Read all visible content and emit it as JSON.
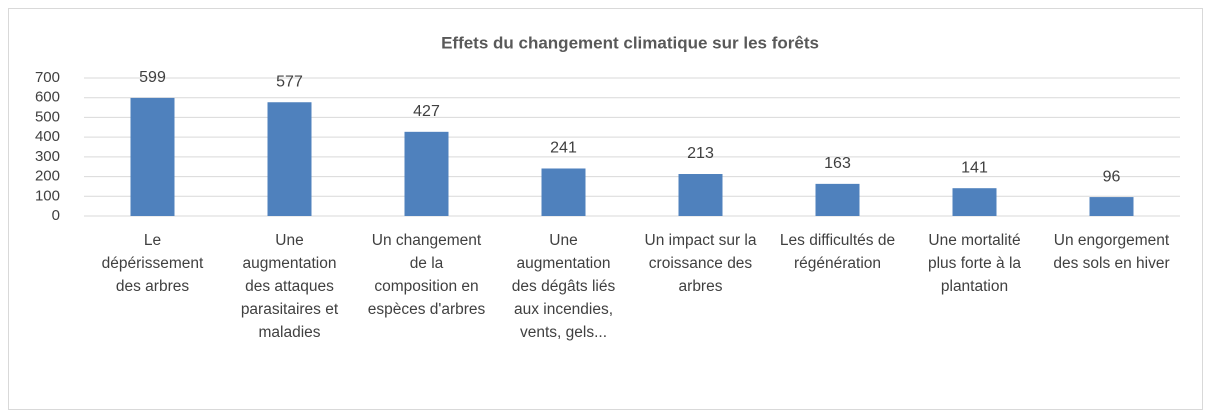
{
  "chart_data": {
    "type": "bar",
    "title": "Effets du changement climatique sur les forêts",
    "categories": [
      "Le dépérissement des arbres",
      "Une augmentation des attaques parasitaires et maladies",
      "Un changement de la composition en espèces d'arbres",
      "Une augmentation des dégâts liés aux incendies, vents, gels...",
      "Un impact sur la croissance des arbres",
      "Les difficultés de régénération",
      "Une mortalité plus forte à la plantation",
      "Un engorgement des sols en hiver"
    ],
    "values": [
      599,
      577,
      427,
      241,
      213,
      163,
      141,
      96
    ],
    "color": "#4f81bd",
    "ylim": [
      0,
      700
    ],
    "yticks": [
      0,
      100,
      200,
      300,
      400,
      500,
      600,
      700
    ],
    "grid": true
  }
}
